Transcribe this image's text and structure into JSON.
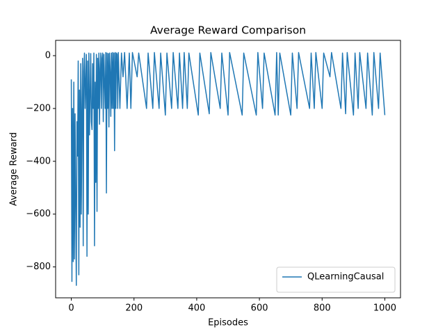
{
  "chart_data": {
    "type": "line",
    "title": "Average Reward Comparison",
    "x_label": "Episodes",
    "y_label": "Average Reward",
    "x": [
      0,
      2,
      4,
      6,
      8,
      10,
      12,
      14,
      16,
      18,
      20,
      22,
      24,
      26,
      28,
      30,
      32,
      34,
      36,
      38,
      40,
      42,
      44,
      46,
      48,
      50,
      52,
      54,
      56,
      58,
      60,
      62,
      64,
      66,
      68,
      70,
      72,
      74,
      76,
      78,
      80,
      82,
      84,
      86,
      88,
      90,
      92,
      94,
      96,
      98,
      100,
      102,
      104,
      106,
      108,
      110,
      112,
      114,
      116,
      118,
      120,
      122,
      124,
      126,
      128,
      130,
      132,
      134,
      136,
      138,
      140,
      142,
      144,
      146,
      148,
      150,
      155,
      160,
      165,
      170,
      178,
      185,
      190,
      195,
      210,
      215,
      240,
      245,
      260,
      265,
      280,
      285,
      300,
      305,
      320,
      325,
      340,
      345,
      355,
      360,
      370,
      375,
      405,
      410,
      440,
      445,
      475,
      480,
      500,
      505,
      545,
      550,
      590,
      595,
      610,
      615,
      650,
      655,
      660,
      665,
      700,
      705,
      720,
      725,
      760,
      765,
      775,
      780,
      800,
      805,
      825,
      830,
      860,
      865,
      875,
      880,
      900,
      905,
      915,
      920,
      940,
      945,
      960,
      965,
      980,
      985,
      1000
    ],
    "series": [
      {
        "name": "QLearningCausal",
        "color": "#1f77b4",
        "values": [
          -90,
          -855,
          -200,
          -780,
          -100,
          -770,
          -220,
          -560,
          -870,
          -250,
          -380,
          -20,
          -830,
          -130,
          -650,
          -30,
          -600,
          -200,
          -10,
          -720,
          -60,
          10,
          -200,
          -100,
          5,
          -760,
          -20,
          -600,
          10,
          -300,
          -150,
          8,
          -250,
          -280,
          -30,
          -200,
          10,
          -720,
          -100,
          -480,
          5,
          -590,
          -10,
          -200,
          10,
          -260,
          -50,
          10,
          -200,
          -10,
          10,
          -250,
          5,
          -100,
          -200,
          12,
          -520,
          10,
          -200,
          8,
          -270,
          10,
          -60,
          -230,
          10,
          -200,
          12,
          -200,
          10,
          -360,
          12,
          -200,
          10,
          5,
          -200,
          12,
          -200,
          10,
          -80,
          12,
          -200,
          10,
          -200,
          12,
          -80,
          10,
          -200,
          10,
          -200,
          12,
          -200,
          10,
          -225,
          10,
          -200,
          12,
          -200,
          10,
          -200,
          12,
          -200,
          10,
          -225,
          10,
          -220,
          12,
          -200,
          10,
          -225,
          12,
          -225,
          10,
          -225,
          12,
          -200,
          10,
          -225,
          12,
          -225,
          10,
          -225,
          10,
          -200,
          12,
          -200,
          10,
          -200,
          12,
          -200,
          10,
          -80,
          12,
          -200,
          10,
          -220,
          12,
          -225,
          10,
          -200,
          12,
          -200,
          10,
          -225,
          12,
          -200,
          10,
          -225
        ]
      }
    ],
    "xlim": [
      -50,
      1050
    ],
    "ylim": [
      -917,
      58
    ],
    "xticks": [
      0,
      200,
      400,
      600,
      800,
      1000
    ],
    "yticks": [
      {
        "value": -800,
        "label": "−800"
      },
      {
        "value": -600,
        "label": "−600"
      },
      {
        "value": -400,
        "label": "−400"
      },
      {
        "value": -200,
        "label": "−200"
      },
      0
    ],
    "legend": "lower right",
    "grid": false
  }
}
